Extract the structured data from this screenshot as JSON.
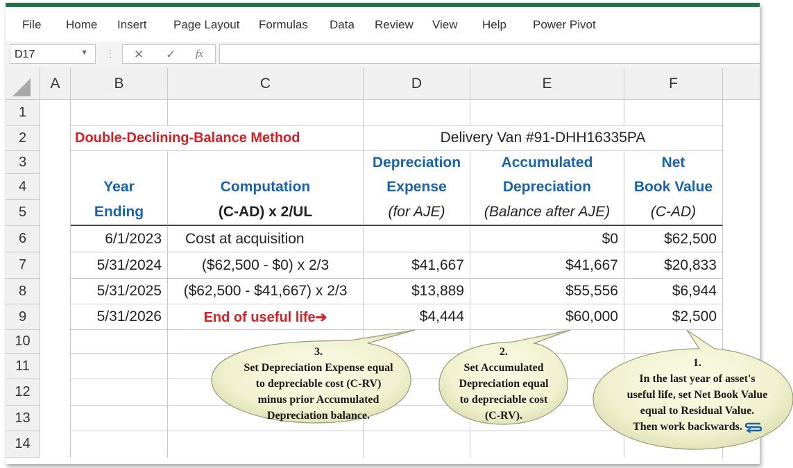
{
  "menu": [
    "File",
    "Home",
    "Insert",
    "Page Layout",
    "Formulas",
    "Data",
    "Review",
    "View",
    "Help",
    "Power Pivot"
  ],
  "formula_bar": {
    "name_box": "D17",
    "cancel_icon": "✕",
    "enter_icon": "✓",
    "fx_icon": "fx",
    "formula": ""
  },
  "columns": [
    "A",
    "B",
    "C",
    "D",
    "E",
    "F"
  ],
  "rows": [
    "1",
    "2",
    "3",
    "4",
    "5",
    "6",
    "7",
    "8",
    "9",
    "10",
    "11",
    "12",
    "13",
    "14"
  ],
  "sheet": {
    "title": "Double-Declining-Balance Method",
    "asset": "Delivery Van #91-DHH16335PA",
    "headers": {
      "b4": "Year",
      "b5": "Ending",
      "c4": "Computation",
      "c5": "(C-AD) x 2/UL",
      "d3": "Depreciation",
      "d4": "Expense",
      "d5": "(for AJE)",
      "e3": "Accumulated",
      "e4": "Depreciation",
      "e5": "(Balance after AJE)",
      "f3": "Net",
      "f4": "Book Value",
      "f5": "(C-AD)"
    },
    "data": [
      {
        "year": "6/1/2023",
        "computation": "Cost at acquisition",
        "expense": "",
        "accumulated": "$0",
        "nbv": "$62,500"
      },
      {
        "year": "5/31/2024",
        "computation": "($62,500 - $0) x 2/3",
        "expense": "$41,667",
        "accumulated": "$41,667",
        "nbv": "$20,833"
      },
      {
        "year": "5/31/2025",
        "computation": "($62,500 - $41,667) x 2/3",
        "expense": "$13,889",
        "accumulated": "$55,556",
        "nbv": "$6,944"
      },
      {
        "year": "5/31/2026",
        "computation": "End of useful life➔",
        "expense": "$4,444",
        "accumulated": "$60,000",
        "nbv": "$2,500"
      }
    ]
  },
  "callouts": {
    "one": {
      "num": "1.",
      "lines": [
        "In the last year of asset's",
        "useful life, set Net Book Value",
        "equal to Residual Value.",
        "Then work backwards."
      ]
    },
    "two": {
      "num": "2.",
      "lines": [
        "Set Accumulated",
        "Depreciation equal",
        "to depreciable cost",
        "(C-RV)."
      ]
    },
    "three": {
      "num": "3.",
      "lines": [
        "Set Depreciation Expense equal",
        "to depreciable cost (C-RV)",
        "minus prior Accumulated",
        "Depreciation balance."
      ]
    }
  }
}
